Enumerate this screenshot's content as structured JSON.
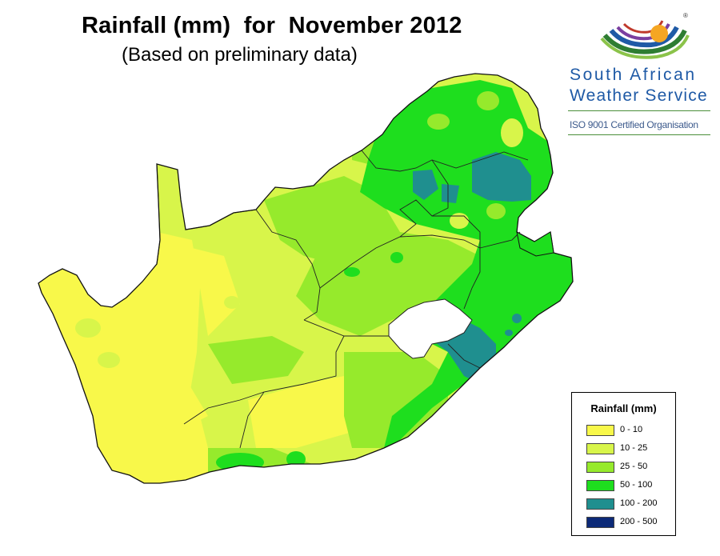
{
  "title": "Rainfall (mm)  for  November 2012",
  "subtitle": "(Based on preliminary data)",
  "logo": {
    "line1": "South African",
    "line2": "Weather Service",
    "iso": "ISO 9001 Certified Organisation",
    "registered": "®"
  },
  "legend": {
    "title": "Rainfall (mm)",
    "items": [
      {
        "label": "0 - 10",
        "color": "#f8f84a"
      },
      {
        "label": "10 - 25",
        "color": "#d8f54a"
      },
      {
        "label": "25 - 50",
        "color": "#96ea2c"
      },
      {
        "label": "50 - 100",
        "color": "#1ede1e"
      },
      {
        "label": "100 - 200",
        "color": "#1f8f8f"
      },
      {
        "label": "200 - 500",
        "color": "#0c2a78"
      }
    ]
  },
  "colors": {
    "lesotho": "#ffffff",
    "border": "#222222",
    "logo_text": "#1f5aa6"
  }
}
